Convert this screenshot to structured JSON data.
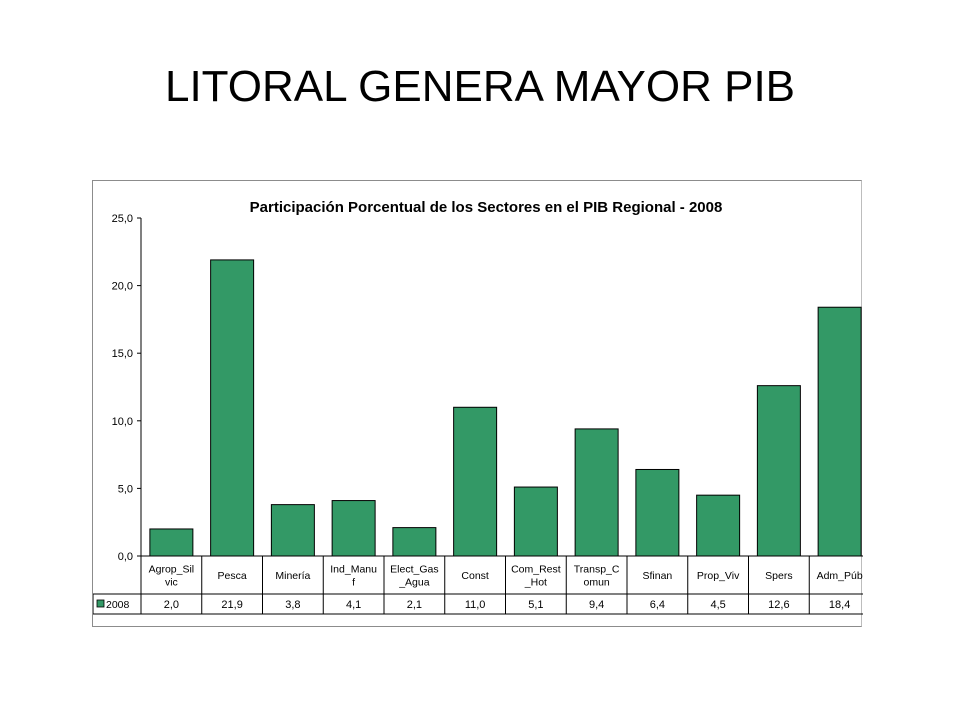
{
  "slide": {
    "title": "LITORAL GENERA MAYOR PIB"
  },
  "colors": {
    "bar": "#339966",
    "bar_stroke": "#000000",
    "axis": "#000000",
    "table_line": "#000000"
  },
  "chart_data": {
    "type": "bar",
    "title": "Participación Porcentual de los Sectores en el PIB Regional - 2008",
    "xlabel": "",
    "ylabel": "",
    "ylim": [
      0,
      25
    ],
    "yticks": [
      "0,0",
      "5,0",
      "10,0",
      "15,0",
      "20,0",
      "25,0"
    ],
    "ytick_values": [
      0,
      5,
      10,
      15,
      20,
      25
    ],
    "grid": false,
    "legend": "data-table",
    "categories": [
      [
        "Agrop_Sil",
        "vic"
      ],
      [
        "Pesca"
      ],
      [
        "Minería"
      ],
      [
        "Ind_Manu",
        "f"
      ],
      [
        "Elect_Gas",
        "_Agua"
      ],
      [
        "Const"
      ],
      [
        "Com_Rest",
        "_Hot"
      ],
      [
        "Transp_C",
        "omun"
      ],
      [
        "Sfinan"
      ],
      [
        "Prop_Viv"
      ],
      [
        "Spers"
      ],
      [
        "Adm_Púb"
      ]
    ],
    "series": [
      {
        "name": "2008",
        "values": [
          2.0,
          21.9,
          3.8,
          4.1,
          2.1,
          11.0,
          5.1,
          9.4,
          6.4,
          4.5,
          12.6,
          18.4
        ],
        "labels": [
          "2,0",
          "21,9",
          "3,8",
          "4,1",
          "2,1",
          "11,0",
          "5,1",
          "9,4",
          "6,4",
          "4,5",
          "12,6",
          "18,4"
        ]
      }
    ]
  }
}
